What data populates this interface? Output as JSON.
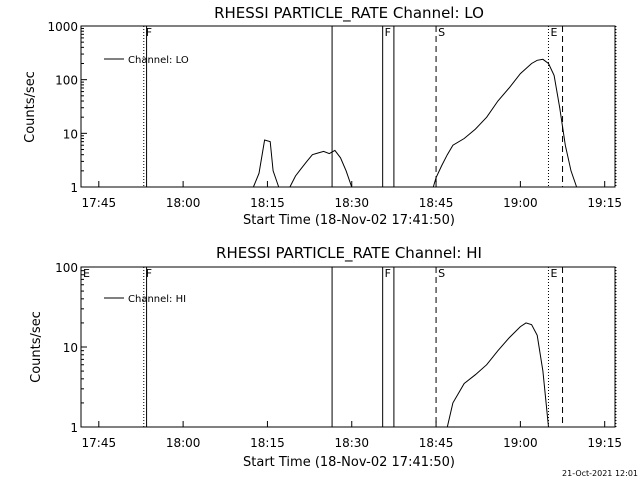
{
  "footer_stamp": "21-Oct-2021 12:01",
  "chart_data": [
    {
      "type": "line",
      "title": "RHESSI PARTICLE_RATE Channel: LO",
      "xlabel": "Start Time (18-Nov-02 17:41:50)",
      "ylabel": "Counts/sec",
      "y_scale": "log",
      "ylim": [
        1,
        1000
      ],
      "xlim_minutes_after_start": [
        0,
        95
      ],
      "x_tick_labels": [
        "17:45",
        "18:00",
        "18:15",
        "18:30",
        "18:45",
        "19:00",
        "19:15"
      ],
      "y_tick_labels": [
        "1",
        "10",
        "100",
        "1000"
      ],
      "legend": {
        "label": "Channel: LO",
        "position": "top-left"
      },
      "event_markers": [
        {
          "label": "",
          "time": "17:41:50",
          "style": "dotted"
        },
        {
          "label": "F",
          "time": "17:53",
          "style": "dotted"
        },
        {
          "label": "",
          "time": "17:53:30",
          "style": "solid"
        },
        {
          "label": "",
          "time": "18:26:30",
          "style": "solid"
        },
        {
          "label": "F",
          "time": "18:35:30",
          "style": "solid"
        },
        {
          "label": "",
          "time": "18:37:30",
          "style": "solid"
        },
        {
          "label": "S",
          "time": "18:45",
          "style": "dashed"
        },
        {
          "label": "E",
          "time": "19:05",
          "style": "dotted"
        },
        {
          "label": "",
          "time": "19:07:30",
          "style": "dashed"
        },
        {
          "label": "",
          "time": "19:17",
          "style": "dotted"
        }
      ],
      "series": [
        {
          "name": "Channel: LO",
          "segments": [
            [
              [
                "18:12:30",
                1
              ],
              [
                "18:13:30",
                1.8
              ],
              [
                "18:14:30",
                7.5
              ],
              [
                "18:15:30",
                7
              ],
              [
                "18:16",
                2
              ],
              [
                "18:17",
                1
              ]
            ],
            [
              [
                "18:19",
                1
              ],
              [
                "18:20",
                1.6
              ],
              [
                "18:21",
                2.2
              ],
              [
                "18:22",
                3
              ],
              [
                "18:23",
                4
              ],
              [
                "18:24",
                4.3
              ],
              [
                "18:25",
                4.6
              ],
              [
                "18:26",
                4.2
              ],
              [
                "18:27",
                4.8
              ],
              [
                "18:28",
                3.5
              ],
              [
                "18:29",
                2
              ],
              [
                "18:30",
                1
              ]
            ],
            [
              [
                "18:44:30",
                1
              ],
              [
                "18:45",
                1.5
              ],
              [
                "18:46",
                2.5
              ],
              [
                "18:47",
                4
              ],
              [
                "18:48",
                6
              ],
              [
                "18:50",
                8
              ],
              [
                "18:52",
                12
              ],
              [
                "18:54",
                20
              ],
              [
                "18:56",
                40
              ],
              [
                "18:58",
                70
              ],
              [
                "19:00",
                130
              ],
              [
                "19:02",
                200
              ],
              [
                "19:03",
                230
              ],
              [
                "19:04",
                240
              ],
              [
                "19:05",
                200
              ],
              [
                "19:06",
                120
              ],
              [
                "19:07",
                30
              ],
              [
                "19:08",
                6
              ],
              [
                "19:09",
                2
              ],
              [
                "19:10",
                1
              ]
            ]
          ]
        }
      ]
    },
    {
      "type": "line",
      "title": "RHESSI PARTICLE_RATE Channel: HI",
      "xlabel": "Start Time (18-Nov-02 17:41:50)",
      "ylabel": "Counts/sec",
      "y_scale": "log",
      "ylim": [
        1,
        100
      ],
      "xlim_minutes_after_start": [
        0,
        95
      ],
      "x_tick_labels": [
        "17:45",
        "18:00",
        "18:15",
        "18:30",
        "18:45",
        "19:00",
        "19:15"
      ],
      "y_tick_labels": [
        "1",
        "10",
        "100"
      ],
      "legend": {
        "label": "Channel: HI",
        "position": "top-left"
      },
      "event_markers": [
        {
          "label": "E",
          "time": "17:41:50",
          "style": "dotted"
        },
        {
          "label": "F",
          "time": "17:53",
          "style": "dotted"
        },
        {
          "label": "",
          "time": "17:53:30",
          "style": "solid"
        },
        {
          "label": "",
          "time": "18:26:30",
          "style": "solid"
        },
        {
          "label": "F",
          "time": "18:35:30",
          "style": "solid"
        },
        {
          "label": "",
          "time": "18:37:30",
          "style": "solid"
        },
        {
          "label": "S",
          "time": "18:45",
          "style": "dashed"
        },
        {
          "label": "E",
          "time": "19:05",
          "style": "dotted"
        },
        {
          "label": "",
          "time": "19:07:30",
          "style": "dashed"
        },
        {
          "label": "",
          "time": "19:17",
          "style": "dotted"
        }
      ],
      "series": [
        {
          "name": "Channel: HI",
          "segments": [
            [
              [
                "18:47",
                1
              ],
              [
                "18:48",
                2
              ],
              [
                "18:50",
                3.5
              ],
              [
                "18:52",
                4.5
              ],
              [
                "18:54",
                6
              ],
              [
                "18:56",
                9
              ],
              [
                "18:58",
                13
              ],
              [
                "19:00",
                18
              ],
              [
                "19:01",
                20
              ],
              [
                "19:02",
                19
              ],
              [
                "19:03",
                14
              ],
              [
                "19:04",
                5
              ],
              [
                "19:05",
                1
              ]
            ]
          ]
        }
      ]
    }
  ]
}
